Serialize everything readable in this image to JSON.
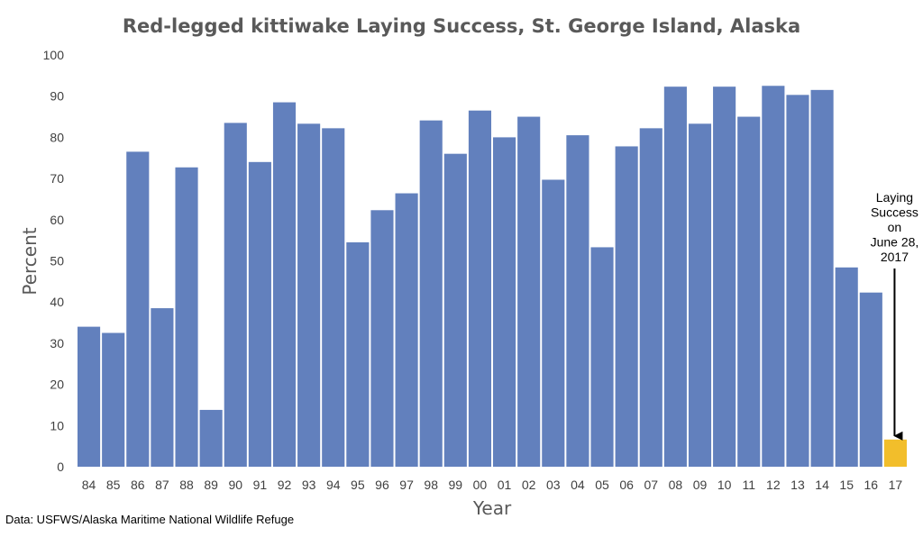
{
  "chart_data": {
    "type": "bar",
    "title": "Red-legged kittiwake Laying Success, St. George Island, Alaska",
    "xlabel": "Year",
    "ylabel": "Percent",
    "ylim": [
      0,
      100
    ],
    "yticks": [
      0,
      10,
      20,
      30,
      40,
      50,
      60,
      70,
      80,
      90,
      100
    ],
    "grid": false,
    "categories": [
      "84",
      "85",
      "86",
      "87",
      "88",
      "89",
      "90",
      "91",
      "92",
      "93",
      "94",
      "95",
      "96",
      "97",
      "98",
      "99",
      "00",
      "01",
      "02",
      "03",
      "04",
      "05",
      "06",
      "07",
      "08",
      "09",
      "10",
      "11",
      "12",
      "13",
      "14",
      "15",
      "16",
      "17"
    ],
    "values": [
      34,
      32.5,
      76.5,
      38.5,
      72.7,
      13.8,
      83.5,
      74,
      88.5,
      83.3,
      82.2,
      54.5,
      62.3,
      66.4,
      84.1,
      76,
      86.5,
      80,
      85,
      69.7,
      80.5,
      53.3,
      77.8,
      82.2,
      92.3,
      83.3,
      92.3,
      85,
      92.5,
      90.3,
      91.5,
      48.4,
      42.3,
      6.6
    ],
    "bar_color": "#6280BD",
    "highlight_index": 33,
    "highlight_color": "#F2BE2B",
    "annotation": {
      "lines": [
        "Laying",
        "Success",
        "on",
        "June 28,",
        "2017"
      ],
      "target_category": "17"
    },
    "source": "Data: USFWS/Alaska Maritime National Wildlife Refuge"
  }
}
